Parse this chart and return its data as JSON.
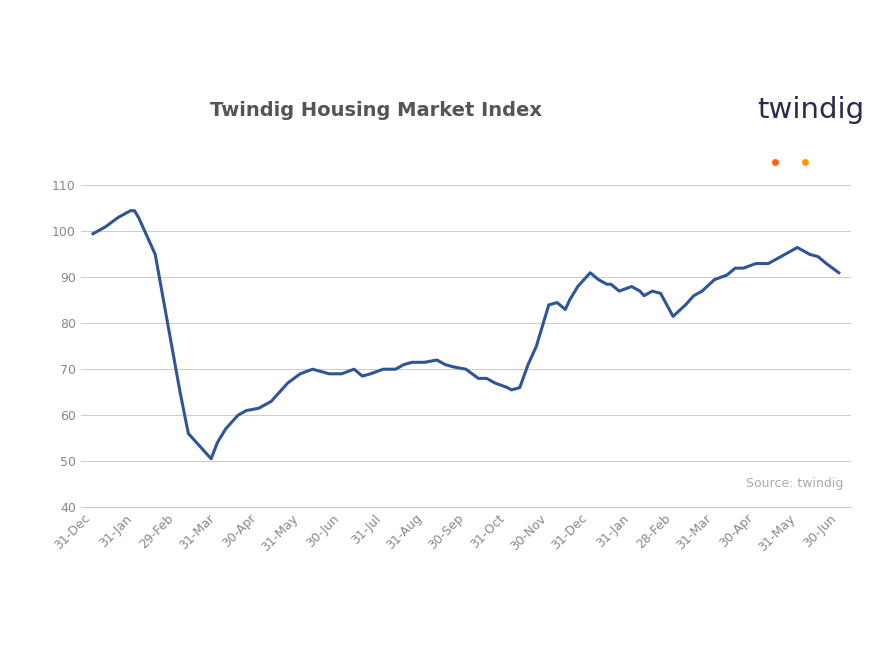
{
  "title": "Twindig Housing Market Index",
  "title_fontsize": 14,
  "title_color": "#555555",
  "line_color": "#2f5597",
  "line_width": 2.2,
  "background_color": "#ffffff",
  "ylim": [
    40,
    115
  ],
  "yticks": [
    40,
    50,
    60,
    70,
    80,
    90,
    100,
    110
  ],
  "source_text": "Source: twindig",
  "source_color": "#aaaaaa",
  "x_labels": [
    "31-Dec",
    "31-Jan",
    "29-Feb",
    "31-Mar",
    "30-Apr",
    "31-May",
    "30-Jun",
    "31-Jul",
    "31-Aug",
    "30-Sep",
    "31-Oct",
    "30-Nov",
    "31-Dec",
    "31-Jan",
    "28-Feb",
    "31-Mar",
    "30-Apr",
    "31-May",
    "30-Jun"
  ],
  "twindig_text_color": "#2b2b4e",
  "twindig_dot_color1": "#ff6600",
  "twindig_dot_color2": "#ff9900"
}
